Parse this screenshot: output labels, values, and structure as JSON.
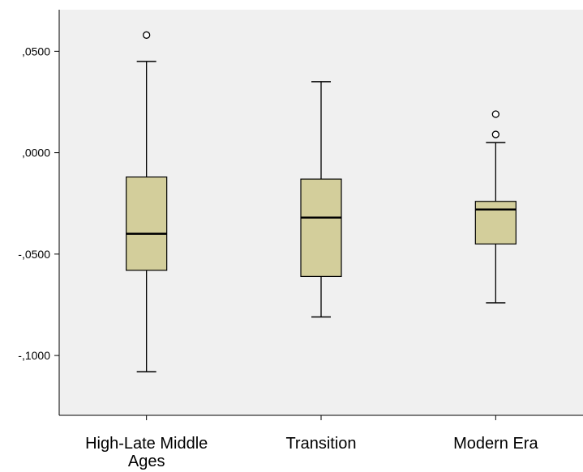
{
  "chart_data": {
    "type": "box",
    "title": "",
    "xlabel": "",
    "ylabel": "",
    "categories": [
      "High-Late Middle Ages",
      "Transition",
      "Modern Era"
    ],
    "category_label_lines": [
      [
        "High-Late Middle",
        "Ages"
      ],
      [
        "Transition"
      ],
      [
        "Modern Era"
      ]
    ],
    "boxes": [
      {
        "category": "High-Late Middle Ages",
        "whisker_low": -0.108,
        "q1": -0.058,
        "median": -0.04,
        "q3": -0.012,
        "whisker_high": 0.045,
        "outliers": [
          0.058
        ]
      },
      {
        "category": "Transition",
        "whisker_low": -0.081,
        "q1": -0.061,
        "median": -0.032,
        "q3": -0.013,
        "whisker_high": 0.035,
        "outliers": []
      },
      {
        "category": "Modern Era",
        "whisker_low": -0.074,
        "q1": -0.045,
        "median": -0.028,
        "q3": -0.024,
        "whisker_high": 0.005,
        "outliers": [
          0.019,
          0.009
        ]
      }
    ],
    "y_ticks": [
      0.05,
      0.0,
      -0.05,
      -0.1
    ],
    "y_tick_labels": [
      ",0500",
      ",0000",
      "-,0500",
      "-,1000"
    ],
    "ylim": [
      -0.1295,
      0.0705
    ],
    "grid": false,
    "legend": "none",
    "colors": {
      "plot_background": "#f0f0f0",
      "box_fill": "#d3ce9b",
      "box_stroke": "#000000",
      "median": "#000000",
      "whisker": "#000000",
      "outlier": "#000000",
      "axis": "#000000"
    }
  }
}
